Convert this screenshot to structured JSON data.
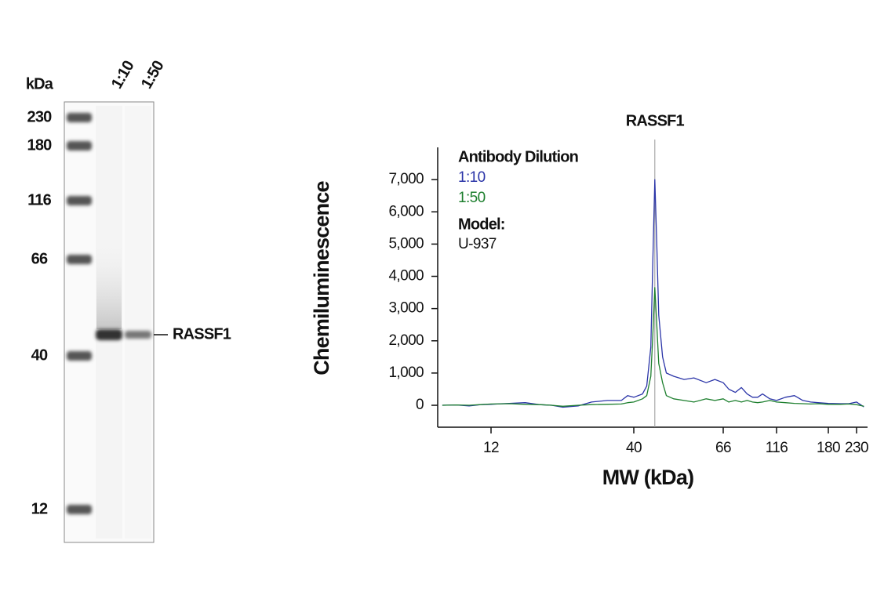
{
  "blot": {
    "unit_label": "kDa",
    "markers": [
      230,
      180,
      116,
      66,
      40,
      12
    ],
    "lanes": [
      "1:10",
      "1:50"
    ],
    "band_label": "RASSF1"
  },
  "chart_data": {
    "type": "line",
    "annotation": {
      "text": "RASSF1",
      "x": 45
    },
    "xlabel": "MW (kDa)",
    "ylabel": "Chemiluminescence",
    "legend_title": "Antibody Dilution",
    "legend": "upper left",
    "model_label": "Model:",
    "model": "U-937",
    "x": [
      8,
      9,
      10,
      11,
      12,
      14,
      16,
      18,
      20,
      22,
      25,
      28,
      32,
      36,
      38,
      40,
      42,
      43,
      44,
      44.5,
      45,
      45.5,
      46,
      47,
      48,
      50,
      53,
      56,
      60,
      63,
      66,
      70,
      75,
      80,
      85,
      90,
      95,
      100,
      108,
      116,
      125,
      135,
      145,
      155,
      165,
      180,
      200,
      215,
      230,
      245
    ],
    "series": [
      {
        "name": "1:10",
        "color": "#2b35a8",
        "values": [
          0,
          10,
          -20,
          20,
          30,
          60,
          80,
          20,
          0,
          -60,
          -20,
          100,
          150,
          150,
          300,
          250,
          350,
          600,
          1800,
          4500,
          7000,
          5000,
          2800,
          1500,
          1000,
          900,
          800,
          850,
          700,
          800,
          700,
          500,
          400,
          550,
          350,
          250,
          250,
          350,
          200,
          150,
          250,
          300,
          150,
          100,
          80,
          60,
          50,
          50,
          100,
          -50
        ]
      },
      {
        "name": "1:50",
        "color": "#1d7f2e",
        "values": [
          0,
          10,
          0,
          20,
          40,
          50,
          30,
          20,
          0,
          -30,
          0,
          20,
          30,
          40,
          80,
          100,
          200,
          300,
          900,
          2200,
          3650,
          2500,
          1300,
          700,
          300,
          200,
          150,
          100,
          200,
          150,
          200,
          100,
          150,
          100,
          150,
          100,
          80,
          100,
          150,
          100,
          80,
          60,
          50,
          40,
          50,
          30,
          30,
          40,
          20,
          -30
        ]
      }
    ],
    "xlim": [
      7.7,
      253
    ],
    "xticks": [
      12,
      40,
      66,
      116,
      180,
      230
    ],
    "ylim": [
      -680,
      8000
    ],
    "yticks": [
      0,
      {
        "value": 1000,
        "label": "1,000"
      },
      {
        "value": 2000,
        "label": "2,000"
      },
      {
        "value": 3000,
        "label": "3,000"
      },
      {
        "value": 4000,
        "label": "4,000"
      },
      {
        "value": 5000,
        "label": "5,000"
      },
      {
        "value": 6000,
        "label": "6,000"
      },
      {
        "value": 7000,
        "label": "7,000"
      }
    ]
  }
}
